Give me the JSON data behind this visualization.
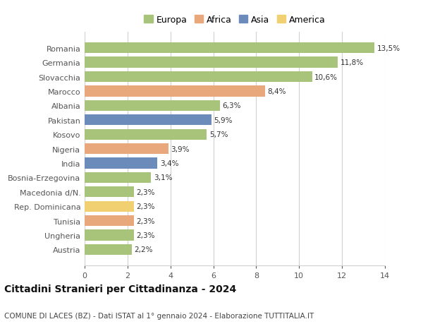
{
  "categories": [
    "Austria",
    "Ungheria",
    "Tunisia",
    "Rep. Dominicana",
    "Macedonia d/N.",
    "Bosnia-Erzegovina",
    "India",
    "Nigeria",
    "Kosovo",
    "Pakistan",
    "Albania",
    "Marocco",
    "Slovacchia",
    "Germania",
    "Romania"
  ],
  "values": [
    2.2,
    2.3,
    2.3,
    2.3,
    2.3,
    3.1,
    3.4,
    3.9,
    5.7,
    5.9,
    6.3,
    8.4,
    10.6,
    11.8,
    13.5
  ],
  "labels": [
    "2,2%",
    "2,3%",
    "2,3%",
    "2,3%",
    "2,3%",
    "3,1%",
    "3,4%",
    "3,9%",
    "5,7%",
    "5,9%",
    "6,3%",
    "8,4%",
    "10,6%",
    "11,8%",
    "13,5%"
  ],
  "continents": [
    "Europa",
    "Europa",
    "Africa",
    "America",
    "Europa",
    "Europa",
    "Asia",
    "Africa",
    "Europa",
    "Asia",
    "Europa",
    "Africa",
    "Europa",
    "Europa",
    "Europa"
  ],
  "colors": {
    "Europa": "#a8c47a",
    "Africa": "#e8a87c",
    "Asia": "#6b8cba",
    "America": "#f0d070"
  },
  "legend_order": [
    "Europa",
    "Africa",
    "Asia",
    "America"
  ],
  "xlim": [
    0,
    14
  ],
  "xticks": [
    0,
    2,
    4,
    6,
    8,
    10,
    12,
    14
  ],
  "title": "Cittadini Stranieri per Cittadinanza - 2024",
  "subtitle": "COMUNE DI LACES (BZ) - Dati ISTAT al 1° gennaio 2024 - Elaborazione TUTTITALIA.IT",
  "background_color": "#ffffff",
  "grid_color": "#d0d0d0",
  "bar_height": 0.75,
  "label_fontsize": 7.5,
  "ytick_fontsize": 8.0,
  "xtick_fontsize": 8.0,
  "legend_fontsize": 9.0,
  "title_fontsize": 10.0,
  "subtitle_fontsize": 7.5
}
